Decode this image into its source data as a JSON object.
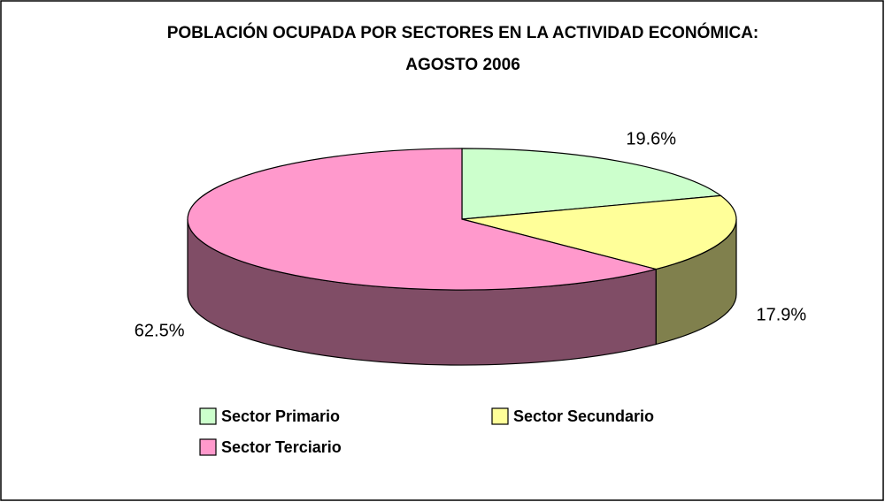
{
  "chart_data": {
    "type": "pie3d",
    "title": "POBLACIÓN OCUPADA POR SECTORES EN LA ACTIVIDAD ECONÓMICA: AGOSTO 2006",
    "categories": [
      "Sector Primario",
      "Sector Secundario",
      "Sector Terciario"
    ],
    "values": [
      19.6,
      17.9,
      62.5
    ],
    "value_labels": [
      "19.6%",
      "17.9%",
      "62.5%"
    ],
    "colors": [
      "#ccffcc",
      "#ffff99",
      "#ff99cc"
    ],
    "legend": "bottom"
  }
}
